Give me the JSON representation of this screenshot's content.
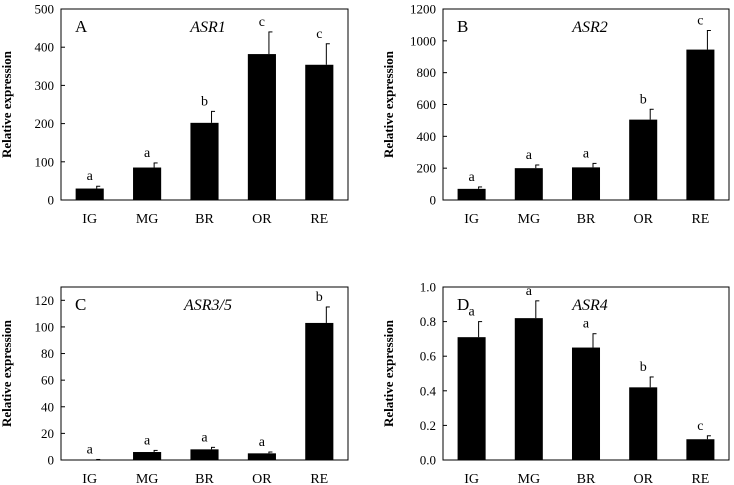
{
  "chart_data": [
    {
      "type": "bar",
      "panel": "A",
      "title": "ASR1",
      "ylabel": "Relative expression",
      "categories": [
        "IG",
        "MG",
        "BR",
        "OR",
        "RE"
      ],
      "values": [
        30,
        85,
        202,
        382,
        354
      ],
      "errors": [
        6,
        12,
        30,
        58,
        55
      ],
      "significance": [
        "a",
        "a",
        "b",
        "c",
        "c"
      ],
      "ylim": [
        0,
        500
      ],
      "yticks": [
        "0",
        "100",
        "200",
        "300",
        "400",
        "500"
      ]
    },
    {
      "type": "bar",
      "panel": "B",
      "title": "ASR2",
      "ylabel": "Relative expression",
      "categories": [
        "IG",
        "MG",
        "BR",
        "OR",
        "RE"
      ],
      "values": [
        70,
        200,
        205,
        505,
        945
      ],
      "errors": [
        12,
        20,
        25,
        65,
        120
      ],
      "significance": [
        "a",
        "a",
        "a",
        "b",
        "c"
      ],
      "ylim": [
        0,
        1200
      ],
      "yticks": [
        "0",
        "200",
        "400",
        "600",
        "800",
        "1000",
        "1200"
      ]
    },
    {
      "type": "bar",
      "panel": "C",
      "title": "ASR3/5",
      "ylabel": "Relative expression",
      "categories": [
        "IG",
        "MG",
        "BR",
        "OR",
        "RE"
      ],
      "values": [
        0.3,
        6,
        8,
        5,
        103
      ],
      "errors": [
        0.1,
        1.2,
        1.5,
        1,
        12
      ],
      "significance": [
        "a",
        "a",
        "a",
        "a",
        "b"
      ],
      "ylim": [
        0,
        130
      ],
      "yticks": [
        "0",
        "20",
        "40",
        "60",
        "80",
        "100",
        "120"
      ]
    },
    {
      "type": "bar",
      "panel": "D",
      "title": "ASR4",
      "ylabel": "Relative expression",
      "categories": [
        "IG",
        "MG",
        "BR",
        "OR",
        "RE"
      ],
      "values": [
        0.71,
        0.82,
        0.65,
        0.42,
        0.12
      ],
      "errors": [
        0.09,
        0.1,
        0.08,
        0.06,
        0.02
      ],
      "significance": [
        "a",
        "a",
        "a",
        "b",
        "c"
      ],
      "ylim": [
        0,
        1.0
      ],
      "yticks": [
        "0.0",
        "0.2",
        "0.4",
        "0.6",
        "0.8",
        "1.0"
      ]
    }
  ]
}
